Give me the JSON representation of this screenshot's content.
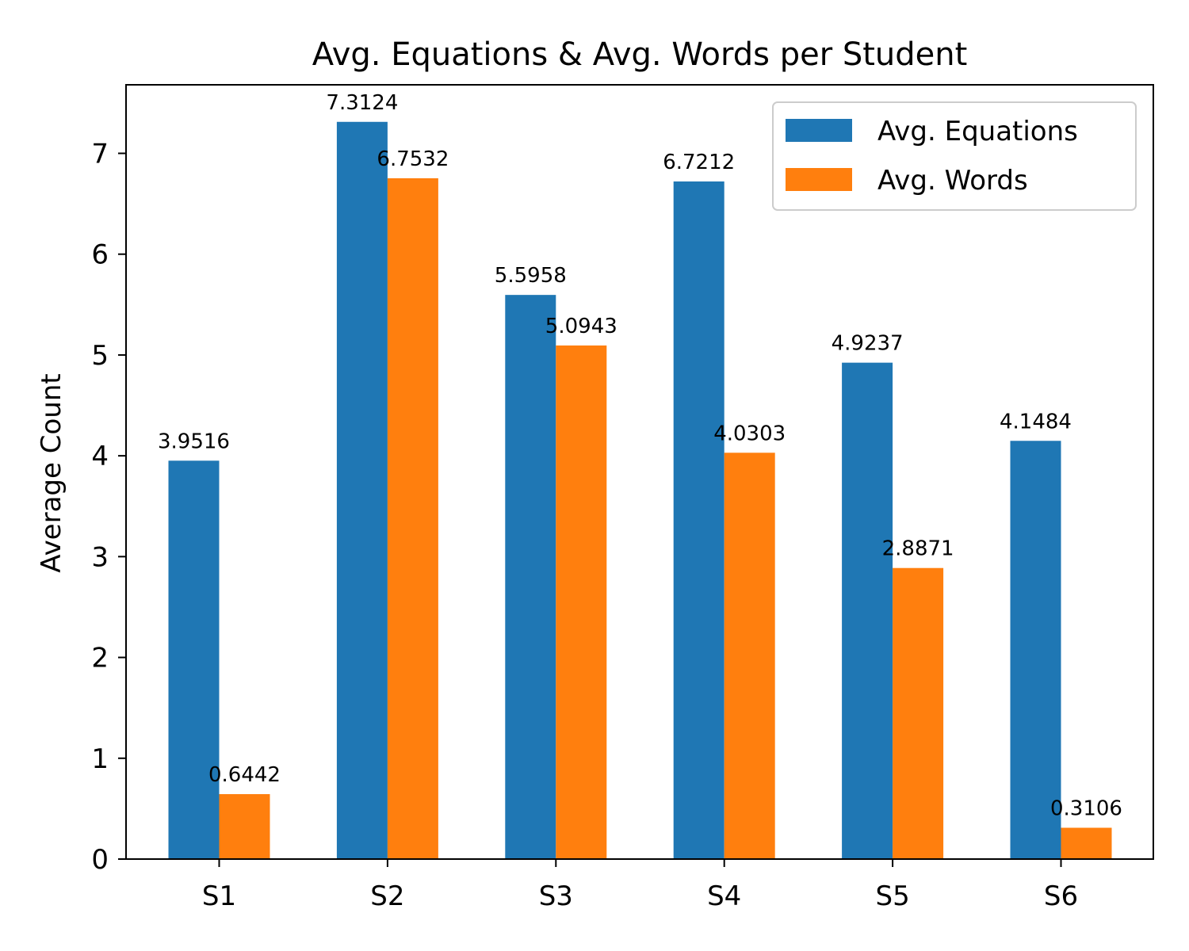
{
  "chart_data": {
    "type": "bar",
    "title": "Avg. Equations & Avg. Words per Student",
    "xlabel": "",
    "ylabel": "Average Count",
    "categories": [
      "S1",
      "S2",
      "S3",
      "S4",
      "S5",
      "S6"
    ],
    "series": [
      {
        "name": "Avg. Equations",
        "color": "#1f77b4",
        "values": [
          3.9516,
          7.3124,
          5.5958,
          6.7212,
          4.9237,
          4.1484
        ],
        "labels": [
          "3.9516",
          "7.3124",
          "5.5958",
          "6.7212",
          "4.9237",
          "4.1484"
        ]
      },
      {
        "name": "Avg. Words",
        "color": "#ff7f0e",
        "values": [
          0.6442,
          6.7532,
          5.0943,
          4.0303,
          2.8871,
          0.3106
        ],
        "labels": [
          "0.6442",
          "6.7532",
          "5.0943",
          "4.0303",
          "2.8871",
          "0.3106"
        ]
      }
    ],
    "yticks": [
      "0",
      "1",
      "2",
      "3",
      "4",
      "5",
      "6",
      "7"
    ],
    "ylim": [
      0,
      7.68
    ],
    "grid": false,
    "legend_position": "top-right"
  }
}
